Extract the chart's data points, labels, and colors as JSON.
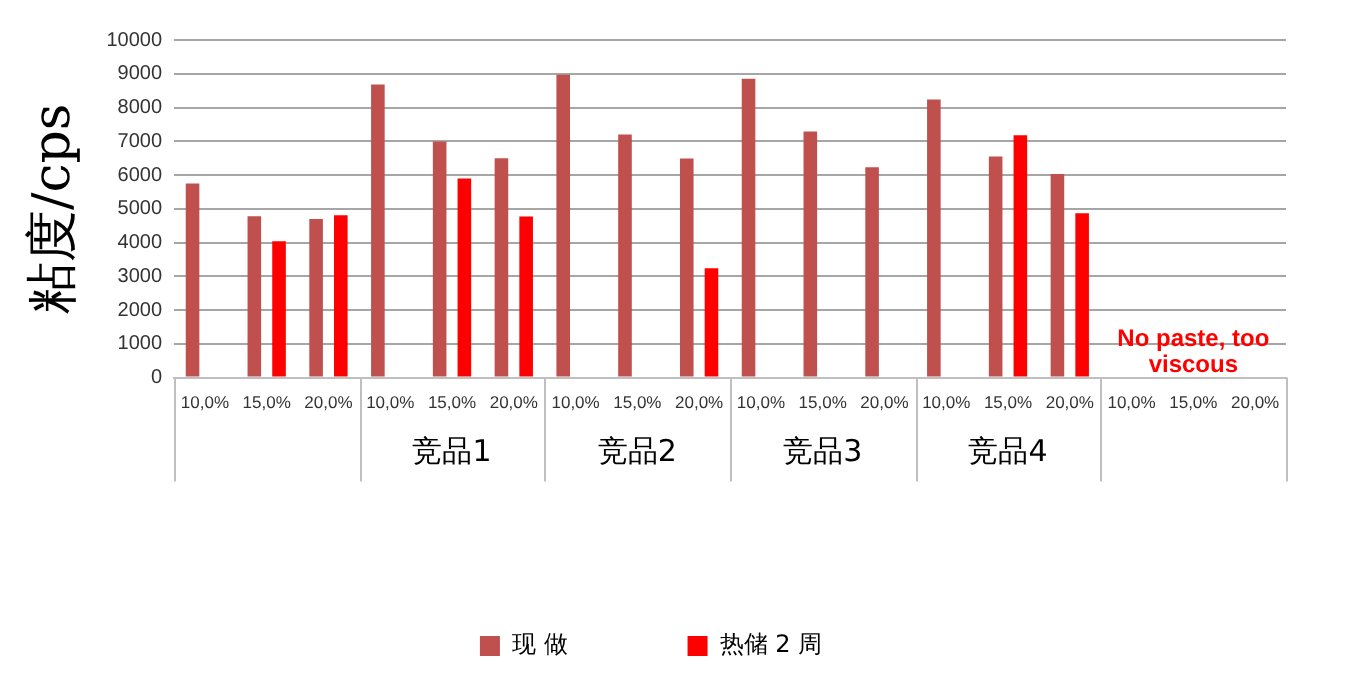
{
  "chart_data": {
    "type": "bar",
    "ylabel": "粘度/cps",
    "categories": [
      "10,0%",
      "15,0%",
      "20,0%",
      "10,0%",
      "15,0%",
      "20,0%",
      "10,0%",
      "15,0%",
      "20,0%",
      "10,0%",
      "15,0%",
      "20,0%",
      "10,0%",
      "15,0%",
      "20,0%",
      "10,0%",
      "15,0%",
      "20,0%"
    ],
    "series": [
      {
        "name": "现 做",
        "color": "#c0504d",
        "values": [
          5750,
          4780,
          4700,
          8680,
          6990,
          6500,
          8970,
          7200,
          6490,
          8850,
          7290,
          6230,
          8240,
          6550,
          6030,
          null,
          null,
          null
        ]
      },
      {
        "name": "热储 2 周",
        "color": "#ff0000",
        "values": [
          null,
          4040,
          4810,
          null,
          5900,
          4770,
          null,
          null,
          3240,
          null,
          null,
          null,
          null,
          7180,
          4870,
          null,
          null,
          null
        ]
      }
    ],
    "ylim": [
      0,
      10000
    ],
    "yticks": [
      0,
      1000,
      2000,
      3000,
      4000,
      5000,
      6000,
      7000,
      8000,
      9000,
      10000
    ],
    "grid": "y",
    "legend": "bottom",
    "annotations": [
      "竞品1",
      "竞品2",
      "竞品3",
      "竞品4",
      "No paste, too viscous"
    ]
  }
}
